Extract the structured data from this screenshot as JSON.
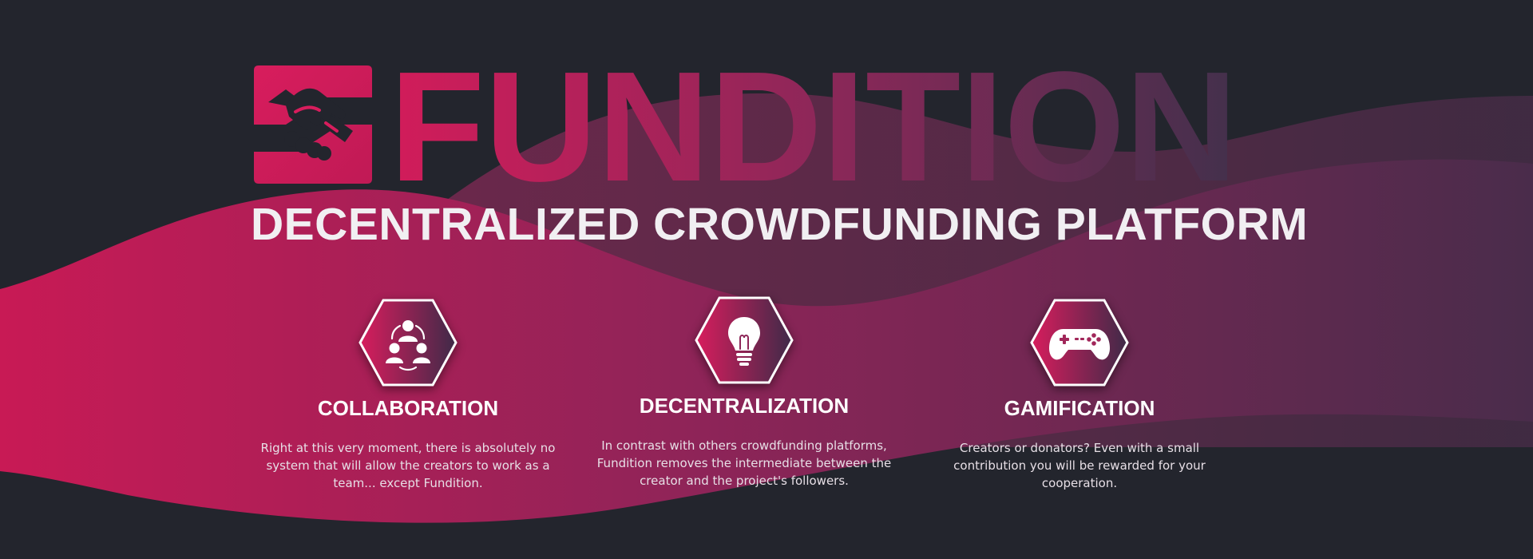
{
  "brand": {
    "name": "FUNDITION",
    "tagline": "DECENTRALIZED CROWDFUNDING PLATFORM",
    "logo_icon": "handshake-icon"
  },
  "colors": {
    "background": "#23252d",
    "accent": "#d81d5d",
    "accent_dark": "#4a2a4d",
    "text": "#ffffff"
  },
  "features": [
    {
      "icon": "team-collaboration-icon",
      "title": "COLLABORATION",
      "text": "Right at this very moment, there is absolutely no system that will allow the creators to work as a team... except Fundition."
    },
    {
      "icon": "lightbulb-icon",
      "title": "DECENTRALIZATION",
      "text": "In contrast with others crowdfunding platforms, Fundition removes the intermediate between the creator and the project's followers."
    },
    {
      "icon": "gamepad-icon",
      "title": "GAMIFICATION",
      "text": "Creators or donators? Even with a small contribution you will be rewarded for your cooperation."
    }
  ]
}
